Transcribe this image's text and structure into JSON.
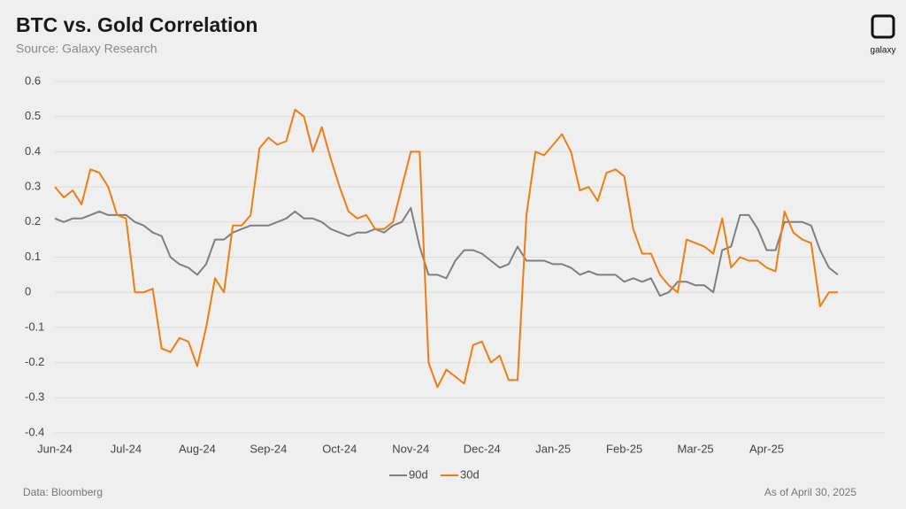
{
  "chart_data": {
    "type": "line",
    "title": "BTC vs. Gold Correlation",
    "subtitle": "Source: Galaxy Research",
    "source_note": "Data: Bloomberg",
    "date_note": "As of April 30, 2025",
    "logo_text": "galaxy",
    "categories": [
      "Jun-24",
      null,
      null,
      null,
      null,
      null,
      null,
      null,
      "Jul-24",
      null,
      null,
      null,
      null,
      null,
      null,
      null,
      "Aug-24",
      null,
      null,
      null,
      null,
      null,
      null,
      null,
      "Sep-24",
      null,
      null,
      null,
      null,
      null,
      null,
      null,
      "Oct-24",
      null,
      null,
      null,
      null,
      null,
      null,
      null,
      "Nov-24",
      null,
      null,
      null,
      null,
      null,
      null,
      null,
      "Dec-24",
      null,
      null,
      null,
      null,
      null,
      null,
      null,
      "Jan-25",
      null,
      null,
      null,
      null,
      null,
      null,
      null,
      "Feb-25",
      null,
      null,
      null,
      null,
      null,
      null,
      null,
      "Mar-25",
      null,
      null,
      null,
      null,
      null,
      null,
      null,
      "Apr-25",
      null,
      null,
      null,
      null,
      null,
      null,
      null,
      null
    ],
    "series": [
      {
        "name": "90d",
        "color": "#7f7f7f",
        "values": [
          0.21,
          0.2,
          0.21,
          0.21,
          0.22,
          0.23,
          0.22,
          0.22,
          0.22,
          0.2,
          0.19,
          0.17,
          0.16,
          0.1,
          0.08,
          0.07,
          0.05,
          0.08,
          0.15,
          0.15,
          0.17,
          0.18,
          0.19,
          0.19,
          0.19,
          0.2,
          0.21,
          0.23,
          0.21,
          0.21,
          0.2,
          0.18,
          0.17,
          0.16,
          0.17,
          0.17,
          0.18,
          0.17,
          0.19,
          0.2,
          0.24,
          0.13,
          0.05,
          0.05,
          0.04,
          0.09,
          0.12,
          0.12,
          0.11,
          0.09,
          0.07,
          0.08,
          0.13,
          0.09,
          0.09,
          0.09,
          0.08,
          0.08,
          0.07,
          0.05,
          0.06,
          0.05,
          0.05,
          0.05,
          0.03,
          0.04,
          0.03,
          0.04,
          -0.01,
          0,
          0.03,
          0.03,
          0.02,
          0.02,
          0,
          0.12,
          0.13,
          0.22,
          0.22,
          0.18,
          0.12,
          0.12,
          0.2,
          0.2,
          0.2,
          0.19,
          0.12,
          0.07,
          0.05
        ]
      },
      {
        "name": "30d",
        "color": "#f07d12",
        "values": [
          0.3,
          0.27,
          0.29,
          0.25,
          0.35,
          0.34,
          0.3,
          0.22,
          0.21,
          0,
          0,
          0.01,
          -0.16,
          -0.17,
          -0.13,
          -0.14,
          -0.21,
          -0.1,
          0.04,
          0,
          0.19,
          0.19,
          0.22,
          0.41,
          0.44,
          0.42,
          0.43,
          0.52,
          0.5,
          0.4,
          0.47,
          0.38,
          0.3,
          0.23,
          0.21,
          0.22,
          0.18,
          0.18,
          0.2,
          0.3,
          0.4,
          0.4,
          -0.2,
          -0.27,
          -0.22,
          -0.24,
          -0.26,
          -0.15,
          -0.14,
          -0.2,
          -0.18,
          -0.25,
          -0.25,
          0.22,
          0.4,
          0.39,
          0.42,
          0.45,
          0.4,
          0.29,
          0.3,
          0.26,
          0.34,
          0.35,
          0.33,
          0.18,
          0.11,
          0.11,
          0.05,
          0.02,
          0,
          0.15,
          0.14,
          0.13,
          0.11,
          0.21,
          0.07,
          0.1,
          0.09,
          0.09,
          0.07,
          0.06,
          0.23,
          0.17,
          0.15,
          0.14,
          -0.04,
          0,
          0
        ]
      }
    ],
    "ylim": [
      -0.4,
      0.6
    ],
    "yticks": [
      -0.4,
      -0.3,
      -0.2,
      -0.1,
      0,
      0.1,
      0.2,
      0.3,
      0.4,
      0.5,
      0.6
    ],
    "grid": true,
    "legend": "bottom"
  }
}
